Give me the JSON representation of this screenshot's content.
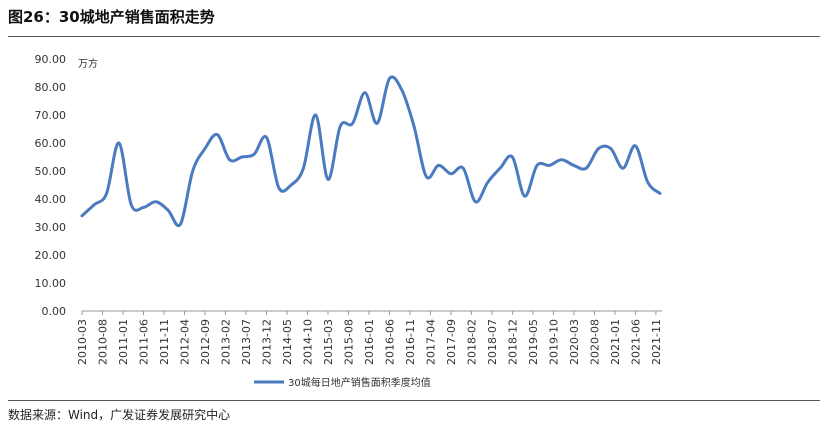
{
  "title": "图26：30城地产销售面积走势",
  "source": "数据来源：Wind，广发证券发展研究中心",
  "chart_data": {
    "type": "line",
    "unit_label": "万方",
    "ylim": [
      0,
      90
    ],
    "yticks": [
      "0.00",
      "10.00",
      "20.00",
      "30.00",
      "40.00",
      "50.00",
      "60.00",
      "70.00",
      "80.00",
      "90.00"
    ],
    "xticks": [
      "2010-03",
      "2010-08",
      "2011-01",
      "2011-06",
      "2011-11",
      "2012-04",
      "2012-09",
      "2013-02",
      "2013-07",
      "2013-12",
      "2014-05",
      "2014-10",
      "2015-03",
      "2015-08",
      "2016-01",
      "2016-06",
      "2016-11",
      "2017-04",
      "2017-09",
      "2018-02",
      "2018-07",
      "2018-12",
      "2019-05",
      "2019-10",
      "2020-03",
      "2020-08",
      "2021-01",
      "2021-06",
      "2021-11"
    ],
    "grid": false,
    "legend_position": "bottom",
    "color": "#4a7abf",
    "series": [
      {
        "name": "30城每日地产销售面积季度均值",
        "x": [
          "2010-03",
          "2010-06",
          "2010-09",
          "2010-12",
          "2011-03",
          "2011-06",
          "2011-09",
          "2011-12",
          "2012-03",
          "2012-06",
          "2012-09",
          "2012-12",
          "2013-03",
          "2013-06",
          "2013-09",
          "2013-12",
          "2014-03",
          "2014-06",
          "2014-09",
          "2014-12",
          "2015-03",
          "2015-06",
          "2015-09",
          "2015-12",
          "2016-03",
          "2016-06",
          "2016-09",
          "2016-12",
          "2017-03",
          "2017-06",
          "2017-09",
          "2017-12",
          "2018-03",
          "2018-06",
          "2018-09",
          "2018-12",
          "2019-03",
          "2019-06",
          "2019-09",
          "2019-12",
          "2020-03",
          "2020-06",
          "2020-09",
          "2020-12",
          "2021-03",
          "2021-06",
          "2021-09",
          "2021-12"
        ],
        "values": [
          34,
          38,
          42,
          60,
          38,
          37,
          39,
          36,
          31,
          50,
          58,
          63,
          54,
          55,
          56,
          62,
          44,
          45,
          51,
          70,
          47,
          66,
          67,
          78,
          67,
          83,
          79,
          66,
          48,
          52,
          49,
          51,
          39,
          46,
          51,
          55,
          41,
          52,
          52,
          54,
          52,
          51,
          58,
          58,
          51,
          59,
          46,
          42
        ]
      }
    ]
  }
}
